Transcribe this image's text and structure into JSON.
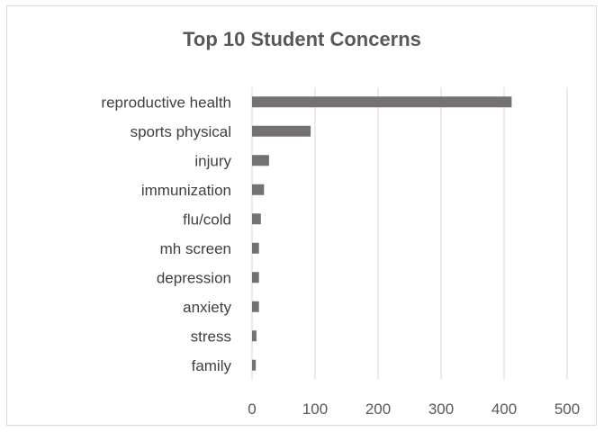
{
  "chart_data": {
    "type": "bar",
    "orientation": "horizontal",
    "title": "Top 10 Student Concerns",
    "categories": [
      "reproductive health",
      "sports physical",
      "injury",
      "immunization",
      "flu/cold",
      "mh screen",
      "depression",
      "anxiety",
      "stress",
      "family"
    ],
    "values": [
      412,
      93,
      27,
      19,
      14,
      11,
      11,
      11,
      7,
      6
    ],
    "xlim": [
      0,
      500
    ],
    "xticks": [
      0,
      100,
      200,
      300,
      400,
      500
    ],
    "xtick_labels": [
      "0",
      "100",
      "200",
      "300",
      "400",
      "500"
    ],
    "grid": "vertical",
    "legend": "none",
    "bar_color": "#767171",
    "grid_color": "#d9d9d9"
  }
}
